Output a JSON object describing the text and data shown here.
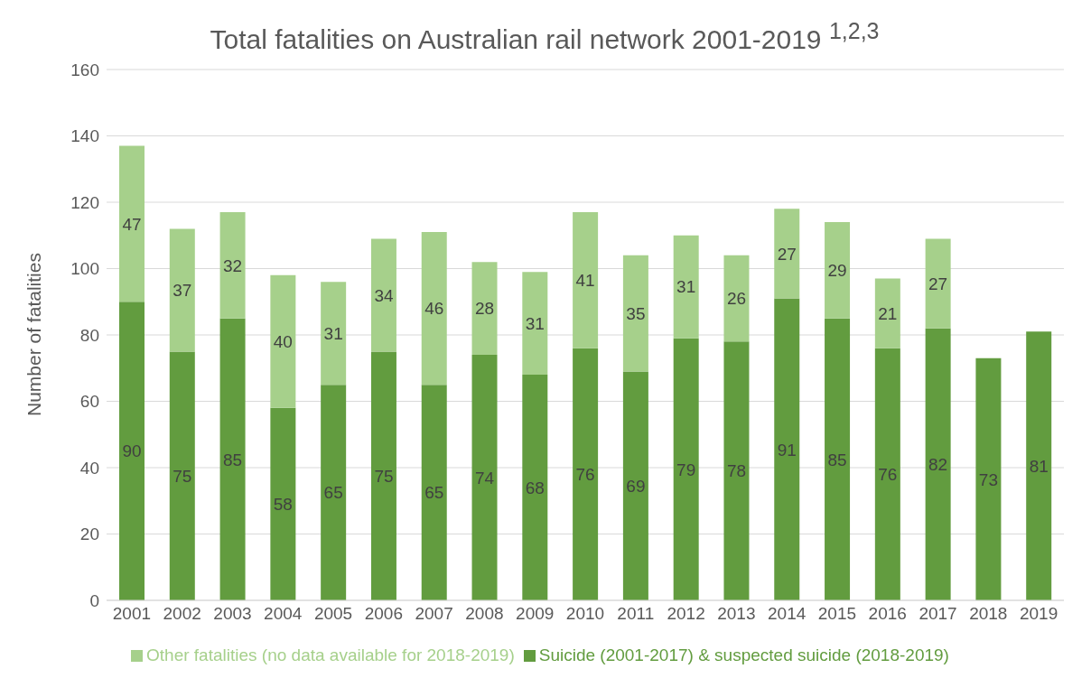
{
  "chart_data": {
    "type": "bar",
    "title": "Total fatalities on Australian rail network 2001-2019 $^{1,2,3}$",
    "ylabel": "Number of fatalities",
    "categories": [
      "2001",
      "2002",
      "2003",
      "2004",
      "2005",
      "2006",
      "2007",
      "2008",
      "2009",
      "2010",
      "2011",
      "2012",
      "2013",
      "2014",
      "2015",
      "2016",
      "2017",
      "2018",
      "2019"
    ],
    "series": [
      {
        "name": "Suicide (2001-2017) & suspected suicide (2018-2019)",
        "color": "#629c3f",
        "values": [
          90,
          75,
          85,
          58,
          65,
          75,
          65,
          74,
          68,
          76,
          69,
          79,
          78,
          91,
          85,
          76,
          82,
          73,
          81
        ]
      },
      {
        "name": "Other fatalities (no data available for 2018-2019)",
        "color": "#a6d08b",
        "values": [
          47,
          37,
          32,
          40,
          31,
          34,
          46,
          28,
          31,
          41,
          35,
          31,
          26,
          27,
          29,
          21,
          27,
          null,
          null
        ]
      }
    ],
    "stacked": true,
    "data_labels": true,
    "ylim": [
      0,
      160
    ],
    "yticks": [
      0,
      20,
      40,
      60,
      80,
      100,
      120,
      140,
      160
    ],
    "grid": "y",
    "legend": "bottom"
  }
}
